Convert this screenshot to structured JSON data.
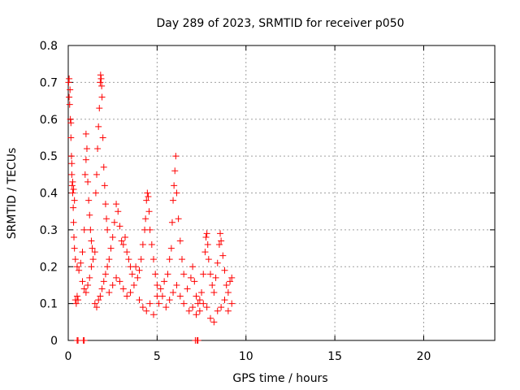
{
  "chart_data": {
    "type": "scatter",
    "title": "Day 289 of 2023, SRMTID for receiver p050",
    "xlabel": "GPS time / hours",
    "ylabel": "SRMTID / TECUs",
    "xlim": [
      0,
      24
    ],
    "ylim": [
      0,
      0.8
    ],
    "x_ticks": [
      0,
      5,
      10,
      15,
      20
    ],
    "x_tick_labels": [
      "0",
      "5",
      "10",
      "15",
      "20"
    ],
    "y_ticks": [
      0,
      0.1,
      0.2,
      0.3,
      0.4,
      0.5,
      0.6,
      0.7,
      0.8
    ],
    "y_tick_labels": [
      "0",
      "0.1",
      "0.2",
      "0.3",
      "0.4",
      "0.5",
      "0.6",
      "0.7",
      "0.8"
    ],
    "grid": true,
    "marker": "plus",
    "color": "#ff0000",
    "series": [
      {
        "name": "p050",
        "points": [
          [
            0.02,
            0.7
          ],
          [
            0.05,
            0.66
          ],
          [
            0.08,
            0.64
          ],
          [
            0.12,
            0.6
          ],
          [
            0.15,
            0.55
          ],
          [
            0.18,
            0.5
          ],
          [
            0.2,
            0.45
          ],
          [
            0.22,
            0.42
          ],
          [
            0.25,
            0.4
          ],
          [
            0.28,
            0.36
          ],
          [
            0.3,
            0.32
          ],
          [
            0.32,
            0.28
          ],
          [
            0.35,
            0.25
          ],
          [
            0.05,
            0.71
          ],
          [
            0.1,
            0.68
          ],
          [
            0.15,
            0.59
          ],
          [
            0.2,
            0.48
          ],
          [
            0.25,
            0.43
          ],
          [
            0.3,
            0.41
          ],
          [
            0.35,
            0.38
          ],
          [
            0.4,
            0.11
          ],
          [
            0.45,
            0.1
          ],
          [
            0.5,
            0.12
          ],
          [
            0.55,
            0.11
          ],
          [
            0.4,
            0.22
          ],
          [
            0.5,
            0.2
          ],
          [
            0.6,
            0.19
          ],
          [
            0.7,
            0.21
          ],
          [
            0.8,
            0.24
          ],
          [
            0.9,
            0.3
          ],
          [
            0.95,
            0.45
          ],
          [
            1.0,
            0.49
          ],
          [
            1.0,
            0.56
          ],
          [
            1.05,
            0.52
          ],
          [
            1.1,
            0.43
          ],
          [
            1.15,
            0.38
          ],
          [
            1.2,
            0.34
          ],
          [
            1.25,
            0.3
          ],
          [
            1.3,
            0.27
          ],
          [
            1.35,
            0.25
          ],
          [
            0.8,
            0.16
          ],
          [
            0.9,
            0.14
          ],
          [
            1.0,
            0.13
          ],
          [
            1.1,
            0.15
          ],
          [
            1.2,
            0.17
          ],
          [
            1.3,
            0.2
          ],
          [
            1.4,
            0.22
          ],
          [
            1.5,
            0.24
          ],
          [
            1.55,
            0.4
          ],
          [
            1.6,
            0.45
          ],
          [
            1.65,
            0.52
          ],
          [
            1.7,
            0.58
          ],
          [
            1.75,
            0.63
          ],
          [
            1.8,
            0.7
          ],
          [
            1.82,
            0.72
          ],
          [
            1.85,
            0.71
          ],
          [
            1.88,
            0.69
          ],
          [
            1.9,
            0.66
          ],
          [
            1.95,
            0.55
          ],
          [
            2.0,
            0.47
          ],
          [
            2.05,
            0.42
          ],
          [
            2.1,
            0.37
          ],
          [
            2.15,
            0.33
          ],
          [
            2.2,
            0.3
          ],
          [
            1.5,
            0.1
          ],
          [
            1.6,
            0.09
          ],
          [
            1.7,
            0.11
          ],
          [
            1.8,
            0.12
          ],
          [
            1.9,
            0.14
          ],
          [
            2.0,
            0.16
          ],
          [
            2.1,
            0.18
          ],
          [
            2.2,
            0.2
          ],
          [
            2.3,
            0.22
          ],
          [
            2.4,
            0.25
          ],
          [
            2.5,
            0.28
          ],
          [
            2.6,
            0.32
          ],
          [
            2.7,
            0.37
          ],
          [
            2.8,
            0.35
          ],
          [
            2.9,
            0.31
          ],
          [
            3.0,
            0.27
          ],
          [
            3.1,
            0.26
          ],
          [
            3.2,
            0.28
          ],
          [
            3.3,
            0.24
          ],
          [
            3.4,
            0.22
          ],
          [
            3.5,
            0.2
          ],
          [
            2.3,
            0.13
          ],
          [
            2.5,
            0.15
          ],
          [
            2.7,
            0.17
          ],
          [
            2.9,
            0.16
          ],
          [
            3.1,
            0.14
          ],
          [
            3.3,
            0.12
          ],
          [
            3.5,
            0.13
          ],
          [
            3.7,
            0.15
          ],
          [
            3.9,
            0.17
          ],
          [
            4.0,
            0.19
          ],
          [
            4.1,
            0.22
          ],
          [
            4.2,
            0.26
          ],
          [
            4.3,
            0.3
          ],
          [
            4.35,
            0.33
          ],
          [
            4.4,
            0.38
          ],
          [
            4.45,
            0.4
          ],
          [
            4.5,
            0.39
          ],
          [
            4.55,
            0.35
          ],
          [
            4.6,
            0.3
          ],
          [
            4.7,
            0.26
          ],
          [
            4.8,
            0.22
          ],
          [
            4.9,
            0.18
          ],
          [
            5.0,
            0.15
          ],
          [
            3.6,
            0.18
          ],
          [
            3.8,
            0.2
          ],
          [
            4.0,
            0.11
          ],
          [
            4.2,
            0.09
          ],
          [
            4.4,
            0.08
          ],
          [
            4.6,
            0.1
          ],
          [
            4.8,
            0.07
          ],
          [
            5.0,
            0.12
          ],
          [
            5.2,
            0.14
          ],
          [
            5.4,
            0.16
          ],
          [
            5.6,
            0.18
          ],
          [
            5.7,
            0.22
          ],
          [
            5.8,
            0.25
          ],
          [
            5.85,
            0.32
          ],
          [
            5.9,
            0.38
          ],
          [
            5.95,
            0.42
          ],
          [
            6.0,
            0.46
          ],
          [
            6.05,
            0.5
          ],
          [
            6.1,
            0.4
          ],
          [
            6.2,
            0.33
          ],
          [
            6.3,
            0.27
          ],
          [
            6.4,
            0.22
          ],
          [
            6.5,
            0.18
          ],
          [
            5.1,
            0.1
          ],
          [
            5.3,
            0.12
          ],
          [
            5.5,
            0.09
          ],
          [
            5.7,
            0.11
          ],
          [
            5.9,
            0.13
          ],
          [
            6.1,
            0.15
          ],
          [
            6.3,
            0.12
          ],
          [
            6.5,
            0.1
          ],
          [
            6.7,
            0.14
          ],
          [
            6.9,
            0.17
          ],
          [
            7.0,
            0.2
          ],
          [
            7.1,
            0.16
          ],
          [
            7.2,
            0.12
          ],
          [
            7.3,
            0.1
          ],
          [
            7.4,
            0.11
          ],
          [
            7.5,
            0.13
          ],
          [
            7.6,
            0.18
          ],
          [
            7.7,
            0.24
          ],
          [
            7.75,
            0.28
          ],
          [
            7.8,
            0.29
          ],
          [
            7.85,
            0.26
          ],
          [
            7.9,
            0.22
          ],
          [
            8.0,
            0.18
          ],
          [
            8.1,
            0.15
          ],
          [
            8.2,
            0.13
          ],
          [
            8.3,
            0.17
          ],
          [
            8.4,
            0.21
          ],
          [
            8.5,
            0.26
          ],
          [
            8.55,
            0.29
          ],
          [
            8.6,
            0.27
          ],
          [
            8.7,
            0.23
          ],
          [
            8.8,
            0.19
          ],
          [
            8.9,
            0.15
          ],
          [
            9.0,
            0.13
          ],
          [
            9.1,
            0.16
          ],
          [
            9.2,
            0.17
          ],
          [
            6.8,
            0.08
          ],
          [
            7.0,
            0.09
          ],
          [
            7.2,
            0.07
          ],
          [
            7.4,
            0.08
          ],
          [
            7.6,
            0.1
          ],
          [
            7.8,
            0.09
          ],
          [
            8.0,
            0.06
          ],
          [
            8.2,
            0.05
          ],
          [
            8.4,
            0.08
          ],
          [
            8.6,
            0.09
          ],
          [
            8.8,
            0.11
          ],
          [
            9.0,
            0.08
          ],
          [
            9.2,
            0.1
          ],
          [
            0.5,
            0.0
          ],
          [
            0.55,
            0.0
          ],
          [
            0.85,
            0.0
          ],
          [
            0.9,
            0.0
          ],
          [
            7.15,
            0.0
          ],
          [
            7.25,
            0.0
          ],
          [
            7.3,
            0.0
          ]
        ]
      }
    ]
  }
}
